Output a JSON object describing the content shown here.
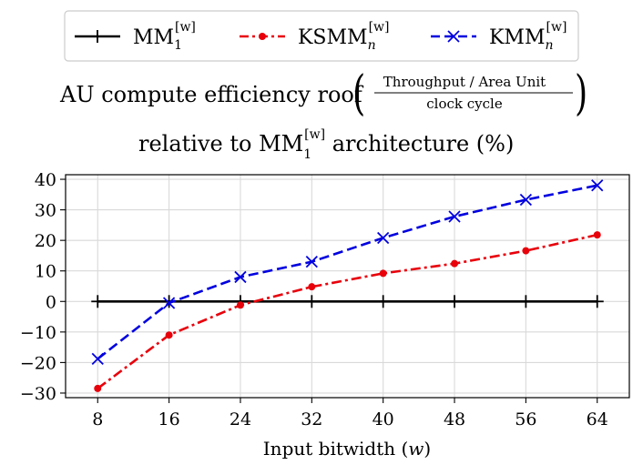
{
  "chart_data": {
    "type": "line",
    "title": {
      "line1_prefix": "AU compute efficiency roof",
      "numerator": "Throughput / Area Unit",
      "denominator": "clock cycle",
      "line2_prefix": "relative to MM",
      "line2_sub": "1",
      "line2_sup": "[w]",
      "line2_suffix": " architecture (%)"
    },
    "xlabel": {
      "text": "Input bitwidth (",
      "var": "w",
      "close": ")"
    },
    "ylabel": "",
    "x": [
      8,
      16,
      24,
      32,
      40,
      48,
      56,
      64
    ],
    "xticks": [
      "8",
      "16",
      "24",
      "32",
      "40",
      "48",
      "56",
      "64"
    ],
    "yticks": [
      "−30",
      "−20",
      "−10",
      "0",
      "10",
      "20",
      "30",
      "40"
    ],
    "ytick_values": [
      -30,
      -20,
      -10,
      0,
      10,
      20,
      30,
      40
    ],
    "xlim": [
      4.4,
      67.6
    ],
    "ylim": [
      -31.5,
      41.5
    ],
    "grid": true,
    "legend_position": "top",
    "series": [
      {
        "name": {
          "base": "MM",
          "sub": "1",
          "sup": "[w]"
        },
        "color": "#000000",
        "line_style": "solid",
        "marker": "plus",
        "values": [
          0,
          0,
          0,
          0,
          0,
          0,
          0,
          0
        ]
      },
      {
        "name": {
          "base": "KSMM",
          "sub": "n",
          "sup": "[w]"
        },
        "color": "#e8000b",
        "line_style": "dashdot",
        "marker": "dot",
        "values": [
          -28.5,
          -11,
          -1.2,
          4.8,
          9.2,
          12.4,
          16.6,
          21.8
        ]
      },
      {
        "name": {
          "base": "KMM",
          "sub": "n",
          "sup": "[w]"
        },
        "color": "#0000e0",
        "line_style": "dashed",
        "marker": "x",
        "values": [
          -18.8,
          -0.5,
          8,
          13,
          20.8,
          27.8,
          33.3,
          38
        ]
      }
    ]
  }
}
